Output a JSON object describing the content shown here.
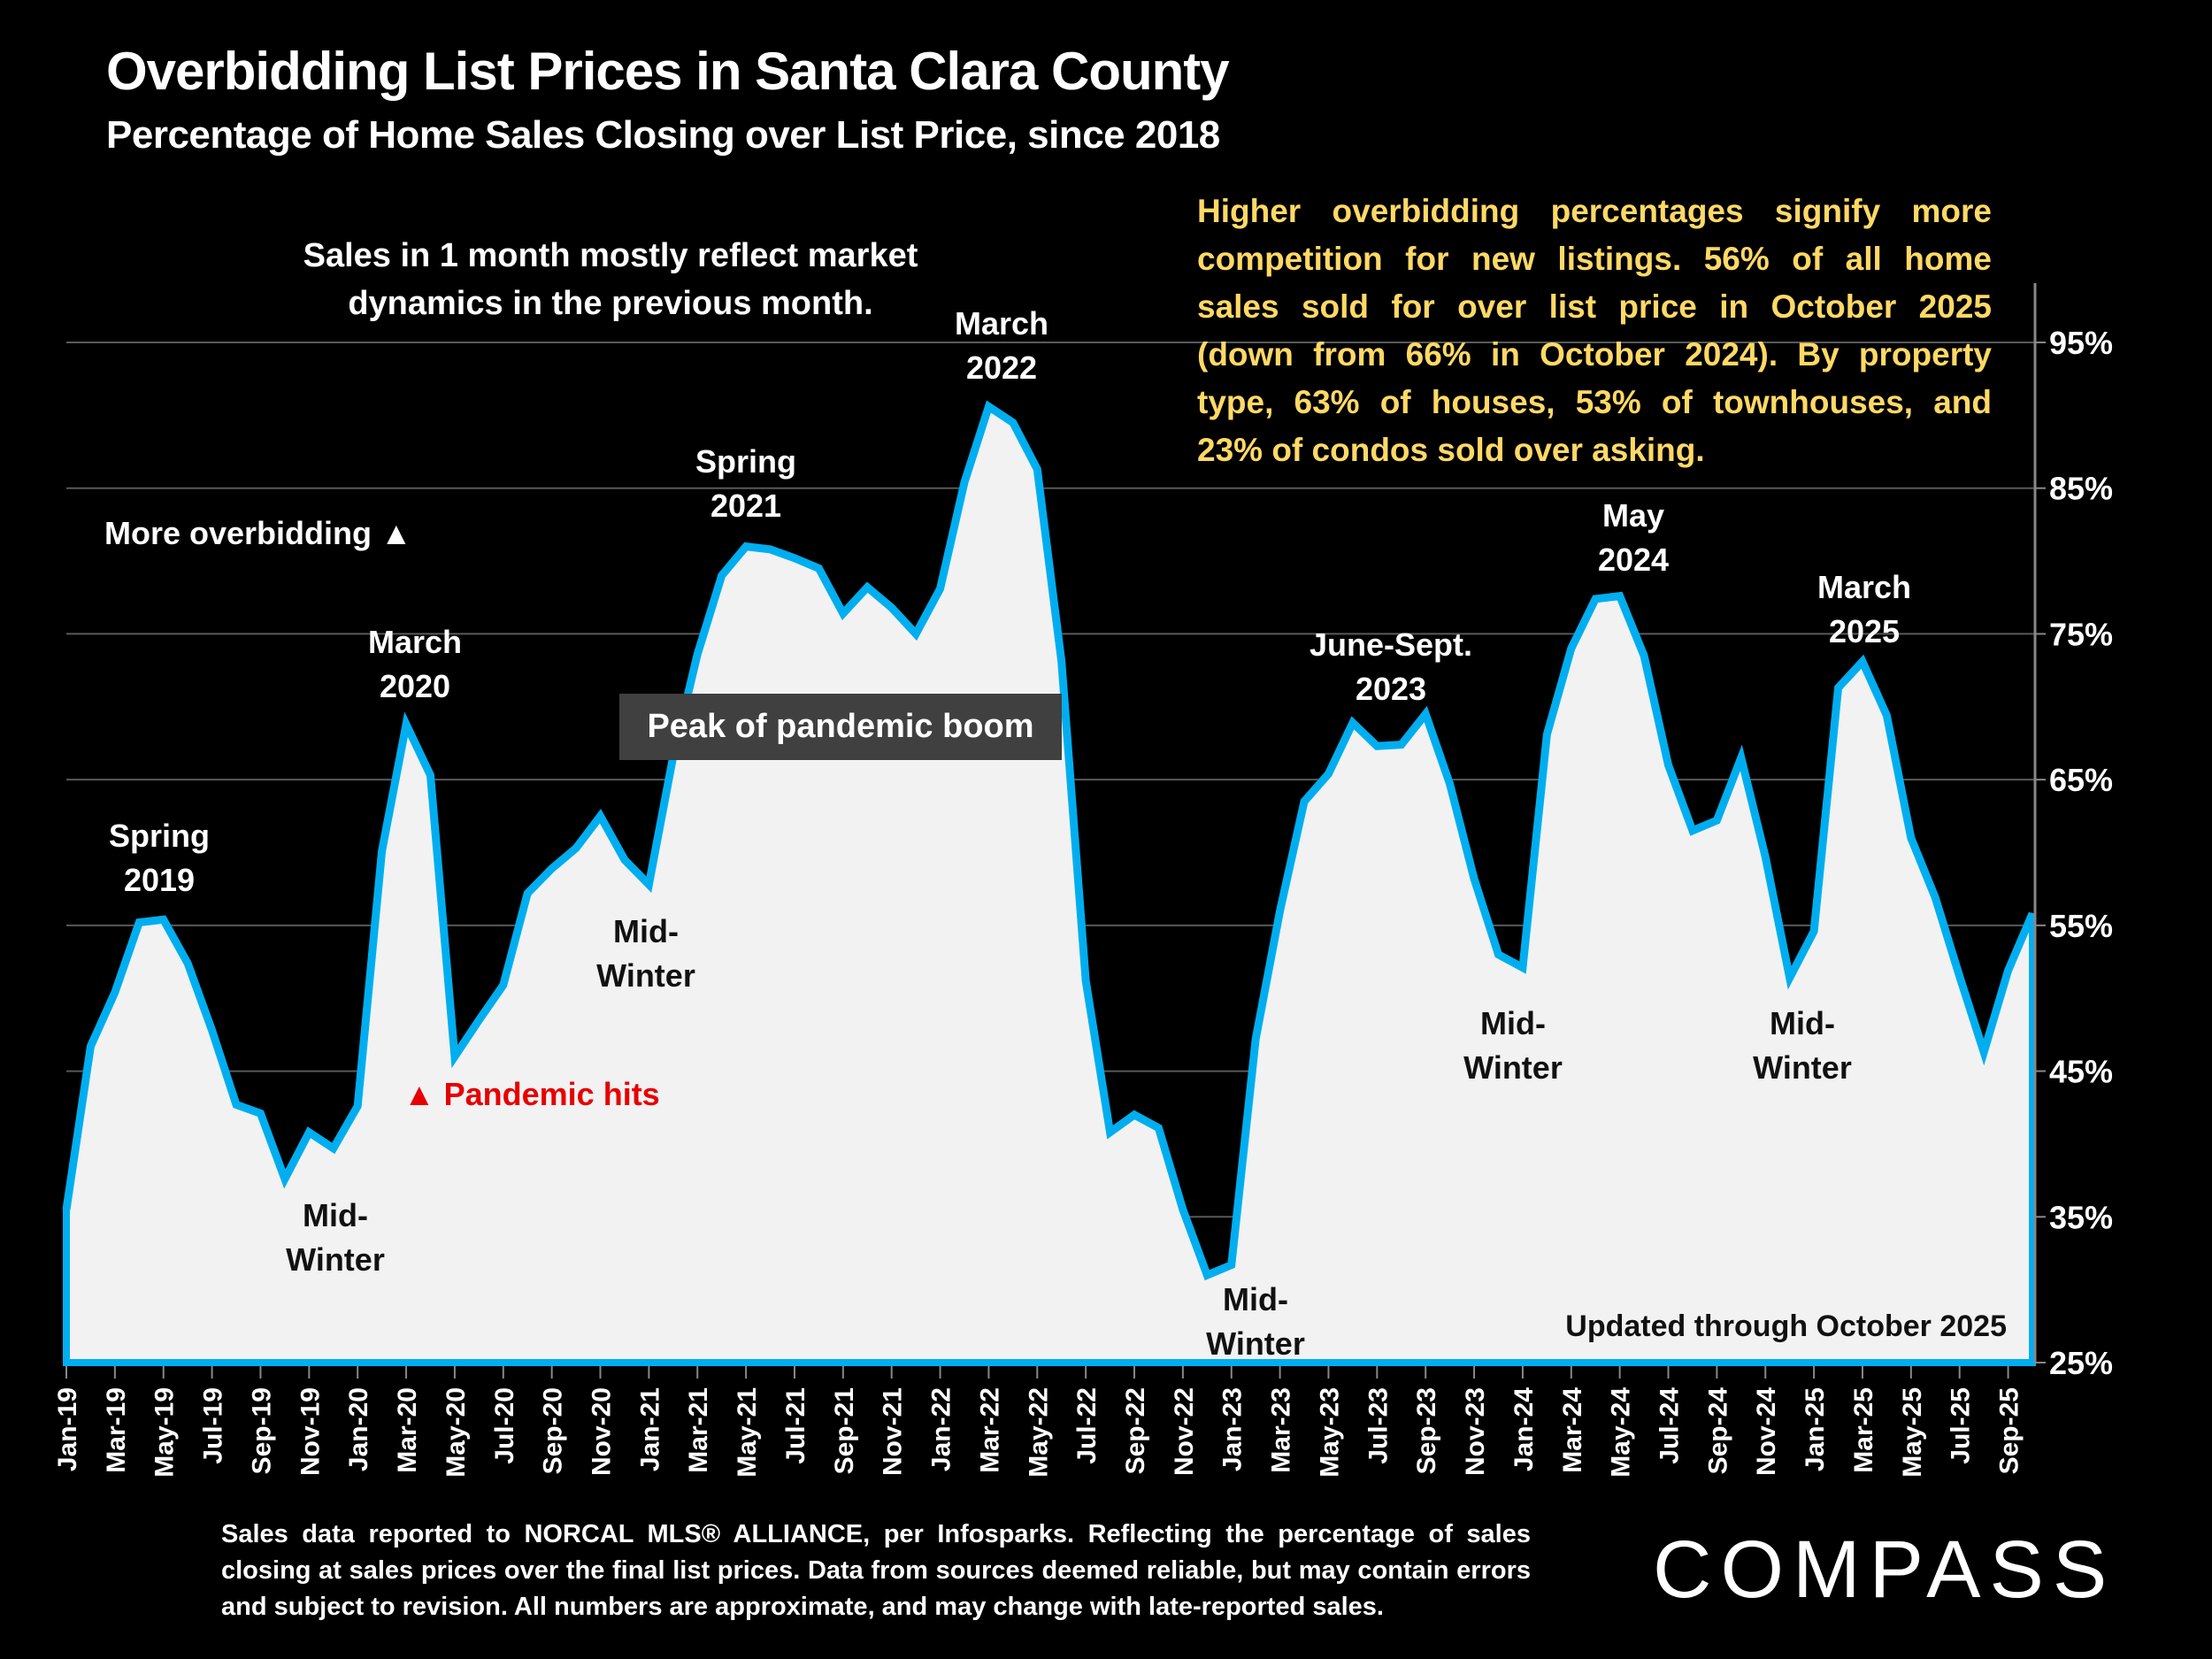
{
  "header": {
    "title": "Overbidding List Prices in Santa Clara County",
    "subtitle": "Percentage of Home Sales Closing over List Price, since 2018"
  },
  "annotations": {
    "lag_note_line1": "Sales in 1 month mostly reflect market",
    "lag_note_line2": "dynamics in the previous month.",
    "more_overbidding": "More overbidding ▲",
    "pandemic_hits": "▲ Pandemic hits",
    "peak_box": "Peak of pandemic boom",
    "updated": "Updated through October 2025",
    "labels": [
      {
        "id": "spring-2019",
        "lines": [
          "Spring",
          "2019"
        ],
        "style": "light"
      },
      {
        "id": "mid-winter-2019",
        "lines": [
          "Mid-",
          "Winter"
        ],
        "style": "dark"
      },
      {
        "id": "march-2020",
        "lines": [
          "March",
          "2020"
        ],
        "style": "light"
      },
      {
        "id": "mid-winter-2020",
        "lines": [
          "Mid-",
          "Winter"
        ],
        "style": "dark"
      },
      {
        "id": "spring-2021",
        "lines": [
          "Spring",
          "2021"
        ],
        "style": "light"
      },
      {
        "id": "march-2022",
        "lines": [
          "March",
          "2022"
        ],
        "style": "light"
      },
      {
        "id": "mid-winter-2022",
        "lines": [
          "Mid-",
          "Winter"
        ],
        "style": "dark"
      },
      {
        "id": "june-sept-2023",
        "lines": [
          "June-Sept.",
          "2023"
        ],
        "style": "light"
      },
      {
        "id": "mid-winter-2023",
        "lines": [
          "Mid-",
          "Winter"
        ],
        "style": "dark"
      },
      {
        "id": "may-2024",
        "lines": [
          "May",
          "2024"
        ],
        "style": "light"
      },
      {
        "id": "mid-winter-2024",
        "lines": [
          "Mid-",
          "Winter"
        ],
        "style": "dark"
      },
      {
        "id": "march-2025",
        "lines": [
          "March",
          "2025"
        ],
        "style": "light"
      }
    ]
  },
  "callout": {
    "lines": [
      "Higher overbidding percentages signify more",
      "competition for new listings. 56% of all home",
      "sales sold for over list price in October 2025",
      "(down from 66% in October 2024). By property",
      "type, 63% of houses, 53% of townhouses, and",
      "23% of condos sold over asking."
    ]
  },
  "footer": {
    "footnote": "Sales data reported to NORCAL MLS® ALLIANCE, per Infosparks. Reflecting the percentage of sales closing at sales prices over the final list prices. Data from sources deemed reliable, but may contain errors and subject to revision. All numbers are approximate, and may change with late-reported sales.",
    "logo": "COMPASS"
  },
  "colors": {
    "line": "#00AEEF",
    "fill": "#F2F2F2",
    "background": "#000000",
    "callout": "#FFD966",
    "pandemic": "#E60000",
    "gridline": "#595959"
  },
  "chart_data": {
    "type": "area",
    "title": "Overbidding List Prices in Santa Clara County",
    "subtitle": "Percentage of Home Sales Closing over List Price, since 2018",
    "xlabel": "",
    "ylabel": "",
    "y_axis_side": "right",
    "ylim": [
      25,
      95
    ],
    "yticks": [
      25,
      35,
      45,
      55,
      65,
      75,
      85,
      95
    ],
    "ytick_labels": [
      "25%",
      "35%",
      "45%",
      "55%",
      "65%",
      "75%",
      "85%",
      "95%"
    ],
    "grid": true,
    "x": [
      "Jan-19",
      "Feb-19",
      "Mar-19",
      "Apr-19",
      "May-19",
      "Jun-19",
      "Jul-19",
      "Aug-19",
      "Sep-19",
      "Oct-19",
      "Nov-19",
      "Dec-19",
      "Jan-20",
      "Feb-20",
      "Mar-20",
      "Apr-20",
      "May-20",
      "Jun-20",
      "Jul-20",
      "Aug-20",
      "Sep-20",
      "Oct-20",
      "Nov-20",
      "Dec-20",
      "Jan-21",
      "Feb-21",
      "Mar-21",
      "Apr-21",
      "May-21",
      "Jun-21",
      "Jul-21",
      "Aug-21",
      "Sep-21",
      "Oct-21",
      "Nov-21",
      "Dec-21",
      "Jan-22",
      "Feb-22",
      "Mar-22",
      "Apr-22",
      "May-22",
      "Jun-22",
      "Jul-22",
      "Aug-22",
      "Sep-22",
      "Oct-22",
      "Nov-22",
      "Dec-22",
      "Jan-23",
      "Feb-23",
      "Mar-23",
      "Apr-23",
      "May-23",
      "Jun-23",
      "Jul-23",
      "Aug-23",
      "Sep-23",
      "Oct-23",
      "Nov-23",
      "Dec-23",
      "Jan-24",
      "Feb-24",
      "Mar-24",
      "Apr-24",
      "May-24",
      "Jun-24",
      "Jul-24",
      "Aug-24",
      "Sep-24",
      "Oct-24",
      "Nov-24",
      "Dec-24",
      "Jan-25",
      "Feb-25",
      "Mar-25",
      "Apr-25",
      "May-25",
      "Jun-25",
      "Jul-25",
      "Aug-25",
      "Sep-25",
      "Oct-25"
    ],
    "xtick_labels": [
      "Jan-19",
      "Mar-19",
      "May-19",
      "Jul-19",
      "Sep-19",
      "Nov-19",
      "Jan-20",
      "Mar-20",
      "May-20",
      "Jul-20",
      "Sep-20",
      "Nov-20",
      "Jan-21",
      "Mar-21",
      "May-21",
      "Jul-21",
      "Sep-21",
      "Nov-21",
      "Jan-22",
      "Mar-22",
      "May-22",
      "Jul-22",
      "Sep-22",
      "Nov-22",
      "Jan-23",
      "Mar-23",
      "May-23",
      "Jul-23",
      "Sep-23",
      "Nov-23",
      "Jan-24",
      "Mar-24",
      "May-24",
      "Jul-24",
      "Sep-24",
      "Nov-24",
      "Jan-25",
      "Mar-25",
      "May-25",
      "Jul-25",
      "Sep-25"
    ],
    "series": [
      {
        "name": "% of sales over list price",
        "values": [
          35.5,
          46.7,
          50.4,
          55.2,
          55.4,
          52.4,
          47.8,
          42.7,
          42.1,
          37.6,
          40.8,
          39.7,
          42.6,
          60.1,
          68.8,
          65.3,
          46.0,
          48.5,
          50.9,
          57.2,
          58.9,
          60.3,
          62.5,
          59.5,
          57.8,
          66.6,
          73.6,
          79.0,
          81.0,
          80.8,
          80.2,
          79.5,
          76.4,
          78.2,
          76.8,
          75.0,
          78.1,
          85.4,
          90.6,
          89.5,
          86.3,
          73.1,
          51.2,
          40.8,
          42.0,
          41.1,
          35.5,
          31.0,
          31.7,
          47.2,
          56.0,
          63.5,
          65.4,
          68.9,
          67.3,
          67.4,
          69.5,
          64.7,
          58.2,
          53.0,
          52.1,
          68.1,
          74.0,
          77.4,
          77.6,
          73.5,
          66.0,
          61.5,
          62.2,
          66.5,
          59.7,
          51.4,
          54.6,
          71.3,
          73.1,
          69.4,
          61.0,
          56.9,
          51.5,
          46.3,
          51.9,
          55.8
        ]
      }
    ]
  }
}
